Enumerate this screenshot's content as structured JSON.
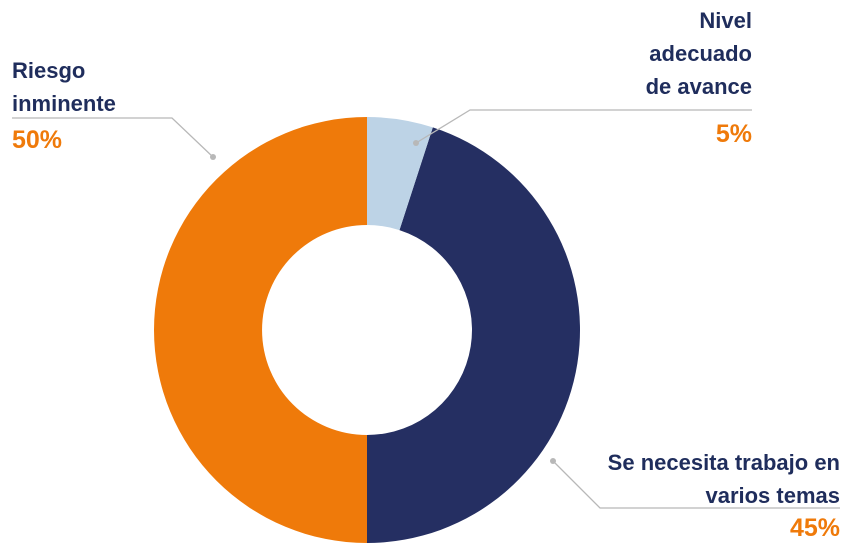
{
  "chart_data": {
    "type": "donut",
    "categories": [
      "Nivel adecuado de avance",
      "Se necesita trabajo en varios temas",
      "Riesgo inminente"
    ],
    "values": [
      5,
      45,
      50
    ],
    "value_labels": [
      "5%",
      "45%",
      "50%"
    ],
    "colors": [
      "#bdd3e6",
      "#252f62",
      "#ef7a0a"
    ]
  }
}
